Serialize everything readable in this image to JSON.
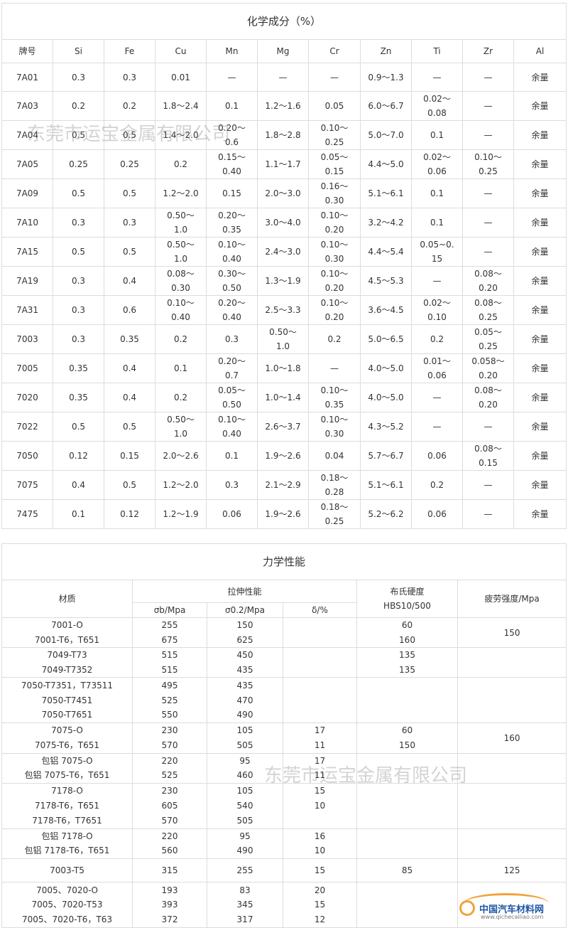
{
  "composition": {
    "title": "化学成分（%）",
    "headers": [
      "牌号",
      "Si",
      "Fe",
      "Cu",
      "Mn",
      "Mg",
      "Cr",
      "Zn",
      "Ti",
      "Zr",
      "Al"
    ],
    "rows": [
      [
        "7A01",
        "0.3",
        "0.3",
        "0.01",
        "—",
        "—",
        "—",
        "0.9～1.3",
        "—",
        "—",
        "余量"
      ],
      [
        "7A03",
        "0.2",
        "0.2",
        "1.8～2.4",
        "0.1",
        "1.2～1.6",
        "0.05",
        "6.0～6.7",
        "0.02～\n0.08",
        "—",
        "余量"
      ],
      [
        "7A04",
        "0.5",
        "0.5",
        "1.4～2.0",
        "0.20～\n0.6",
        "1.8～2.8",
        "0.10～\n0.25",
        "5.0～7.0",
        "0.1",
        "—",
        "余量"
      ],
      [
        "7A05",
        "0.25",
        "0.25",
        "0.2",
        "0.15～\n0.40",
        "1.1～1.7",
        "0.05～\n0.15",
        "4.4～5.0",
        "0.02～\n0.06",
        "0.10～\n0.25",
        "余量"
      ],
      [
        "7A09",
        "0.5",
        "0.5",
        "1.2～2.0",
        "0.15",
        "2.0～3.0",
        "0.16～\n0.30",
        "5.1～6.1",
        "0.1",
        "—",
        "余量"
      ],
      [
        "7A10",
        "0.3",
        "0.3",
        "0.50～\n1.0",
        "0.20～\n0.35",
        "3.0～4.0",
        "0.10～\n0.20",
        "3.2～4.2",
        "0.1",
        "—",
        "余量"
      ],
      [
        "7A15",
        "0.5",
        "0.5",
        "0.50～\n1.0",
        "0.10～\n0.40",
        "2.4～3.0",
        "0.10～\n0.30",
        "4.4～5.4",
        "0.05~0.\n15",
        "—",
        "余量"
      ],
      [
        "7A19",
        "0.3",
        "0.4",
        "0.08～\n0.30",
        "0.30～\n0.50",
        "1.3～1.9",
        "0.10～\n0.20",
        "4.5～5.3",
        "—",
        "0.08～\n0.20",
        "余量"
      ],
      [
        "7A31",
        "0.3",
        "0.6",
        "0.10～\n0.40",
        "0.20～\n0.40",
        "2.5～3.3",
        "0.10～\n0.20",
        "3.6～4.5",
        "0.02～\n0.10",
        "0.08～\n0.25",
        "余量"
      ],
      [
        "7003",
        "0.3",
        "0.35",
        "0.2",
        "0.3",
        "0.50～\n1.0",
        "0.2",
        "5.0～6.5",
        "0.2",
        "0.05～\n0.25",
        "余量"
      ],
      [
        "7005",
        "0.35",
        "0.4",
        "0.1",
        "0.20～\n0.7",
        "1.0～1.8",
        "—",
        "4.0～5.0",
        "0.01～\n0.06",
        "0.058～\n0.20",
        "余量"
      ],
      [
        "7020",
        "0.35",
        "0.4",
        "0.2",
        "0.05～\n0.50",
        "1.0～1.4",
        "0.10～\n0.35",
        "4.0～5.0",
        "—",
        "0.08～\n0.20",
        "余量"
      ],
      [
        "7022",
        "0.5",
        "0.5",
        "0.50～\n1.0",
        "0.10～\n0.40",
        "2.6～3.7",
        "0.10～\n0.30",
        "4.3～5.2",
        "—",
        "—",
        "余量"
      ],
      [
        "7050",
        "0.12",
        "0.15",
        "2.0～2.6",
        "0.1",
        "1.9～2.6",
        "0.04",
        "5.7～6.7",
        "0.06",
        "0.08～\n0.15",
        "余量"
      ],
      [
        "7075",
        "0.4",
        "0.5",
        "1.2～2.0",
        "0.3",
        "2.1～2.9",
        "0.18～\n0.28",
        "5.1～6.1",
        "0.2",
        "—",
        "余量"
      ],
      [
        "7475",
        "0.1",
        "0.12",
        "1.2～1.9",
        "0.06",
        "1.9～2.6",
        "0.18～\n0.25",
        "5.2～6.2",
        "0.06",
        "—",
        "余量"
      ]
    ]
  },
  "mechanical": {
    "title": "力学性能",
    "header_material": "材质",
    "header_tensile": "拉伸性能",
    "header_hardness": "布氏硬度\nHBS10/500",
    "header_fatigue": "疲劳强度/Mpa",
    "sub_headers": [
      "σb/Mpa",
      "σ0.2/Mpa",
      "δ/%"
    ],
    "groups": [
      {
        "materials": [
          "7001-O",
          "7001-T6，T651"
        ],
        "sb": [
          "255",
          "675"
        ],
        "s02": [
          "150",
          "625"
        ],
        "delta": [
          "",
          ""
        ],
        "hb": [
          "60",
          "160"
        ],
        "fatigue": "150"
      },
      {
        "materials": [
          "7049-T73",
          "7049-T7352"
        ],
        "sb": [
          "515",
          "515"
        ],
        "s02": [
          "450",
          "435"
        ],
        "delta": [
          "",
          ""
        ],
        "hb": [
          "135",
          "135"
        ],
        "fatigue": ""
      },
      {
        "materials": [
          "7050-T7351，T73511",
          "7050-T7451",
          "7050-T7651"
        ],
        "sb": [
          "495",
          "525",
          "550"
        ],
        "s02": [
          "435",
          "470",
          "490"
        ],
        "delta": [
          "",
          "",
          ""
        ],
        "hb": [
          "",
          "",
          ""
        ],
        "fatigue": ""
      },
      {
        "materials": [
          "7075-O",
          "7075-T6，T651"
        ],
        "sb": [
          "230",
          "570"
        ],
        "s02": [
          "105",
          "505"
        ],
        "delta": [
          "17",
          "11"
        ],
        "hb": [
          "60",
          "150"
        ],
        "fatigue": "160"
      },
      {
        "materials": [
          "包铝 7075-O",
          "包铝 7075-T6，T651"
        ],
        "sb": [
          "220",
          "525"
        ],
        "s02": [
          "95",
          "460"
        ],
        "delta": [
          "17",
          "11"
        ],
        "hb": [
          "",
          ""
        ],
        "fatigue": ""
      },
      {
        "materials": [
          "7178-O",
          "7178-T6，T651",
          "7178-T6，T7651"
        ],
        "sb": [
          "230",
          "605",
          "570"
        ],
        "s02": [
          "105",
          "540",
          "505"
        ],
        "delta": [
          "15",
          "10",
          ""
        ],
        "hb": [
          "",
          "",
          ""
        ],
        "fatigue": ""
      },
      {
        "materials": [
          "包铝 7178-O",
          "包铝 7178-T6，T651"
        ],
        "sb": [
          "220",
          "560"
        ],
        "s02": [
          "95",
          "490"
        ],
        "delta": [
          "16",
          "10"
        ],
        "hb": [
          "",
          ""
        ],
        "fatigue": ""
      },
      {
        "materials": [
          "7003-T5"
        ],
        "sb": [
          "315"
        ],
        "s02": [
          "255"
        ],
        "delta": [
          "15"
        ],
        "hb": [
          "85"
        ],
        "fatigue": "125"
      },
      {
        "materials": [
          "7005、7020-O",
          "7005、7020-T53",
          "7005、7020-T6，T63"
        ],
        "sb": [
          "193",
          "393",
          "372"
        ],
        "s02": [
          "83",
          "345",
          "317"
        ],
        "delta": [
          "20",
          "15",
          "12"
        ],
        "hb": [
          "",
          "",
          ""
        ],
        "fatigue": ""
      }
    ]
  },
  "watermarks": [
    "东莞市运宝金属有限公司",
    "东莞市运宝金属有限公司"
  ],
  "logo": {
    "name": "中国汽车材料网",
    "url": "www.qichecailiao.com"
  }
}
